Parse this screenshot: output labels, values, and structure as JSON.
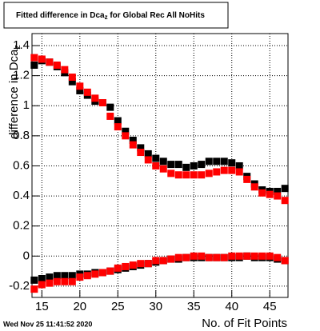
{
  "chart_data": {
    "type": "scatter",
    "title": [
      "Fitted difference in Dca",
      "z",
      " for Global Rec All NoHits"
    ],
    "x_label": "No. of Fit Points",
    "y_label": [
      "difference in Dca",
      "z"
    ],
    "timestamp": "Wed Nov 25 11:41:52 2020",
    "x": [
      14,
      15,
      16,
      17,
      18,
      19,
      20,
      21,
      22,
      23,
      24,
      25,
      26,
      27,
      28,
      29,
      30,
      31,
      32,
      33,
      34,
      35,
      36,
      37,
      38,
      39,
      40,
      41,
      42,
      43,
      44,
      45,
      46,
      47
    ],
    "series": [
      {
        "color": "#000000",
        "values": [
          1.27,
          1.3,
          1.29,
          1.26,
          1.22,
          1.16,
          1.1,
          1.07,
          1.03,
          1.02,
          0.99,
          0.9,
          0.83,
          0.77,
          0.72,
          0.68,
          0.65,
          0.63,
          0.61,
          0.61,
          0.59,
          0.6,
          0.61,
          0.63,
          0.63,
          0.63,
          0.62,
          0.6,
          0.53,
          0.48,
          0.44,
          0.43,
          0.43,
          0.45
        ]
      },
      {
        "color": "#ff0000",
        "values": [
          1.32,
          1.31,
          1.29,
          1.27,
          1.24,
          1.19,
          1.13,
          1.09,
          1.05,
          1.02,
          0.93,
          0.86,
          0.8,
          0.74,
          0.69,
          0.64,
          0.6,
          0.58,
          0.55,
          0.54,
          0.54,
          0.54,
          0.54,
          0.55,
          0.56,
          0.57,
          0.57,
          0.56,
          0.51,
          0.46,
          0.42,
          0.41,
          0.4,
          0.37
        ]
      },
      {
        "color": "#000000",
        "values": [
          -0.16,
          -0.15,
          -0.14,
          -0.13,
          -0.13,
          -0.13,
          -0.12,
          -0.12,
          -0.11,
          -0.11,
          -0.1,
          -0.09,
          -0.08,
          -0.07,
          -0.06,
          -0.05,
          -0.04,
          -0.03,
          -0.02,
          -0.02,
          -0.01,
          -0.01,
          -0.01,
          -0.01,
          -0.01,
          -0.01,
          -0.01,
          -0.01,
          0.0,
          -0.01,
          -0.01,
          -0.01,
          -0.02,
          -0.03
        ]
      },
      {
        "color": "#ff0000",
        "values": [
          -0.22,
          -0.19,
          -0.18,
          -0.17,
          -0.17,
          -0.17,
          -0.14,
          -0.13,
          -0.12,
          -0.11,
          -0.1,
          -0.08,
          -0.07,
          -0.06,
          -0.05,
          -0.05,
          -0.03,
          -0.03,
          -0.02,
          -0.01,
          -0.01,
          0.0,
          0.0,
          -0.01,
          -0.01,
          -0.01,
          0.0,
          0.0,
          0.0,
          0.0,
          0.0,
          0.0,
          -0.01,
          -0.03
        ]
      }
    ],
    "xlim": [
      13.7,
      47.4
    ],
    "ylim": [
      -0.275,
      1.48
    ],
    "xticks": [
      15,
      20,
      25,
      30,
      35,
      40,
      45
    ],
    "yticks": [
      -0.2,
      0,
      0.2,
      0.4,
      0.6,
      0.8,
      1,
      1.2,
      1.4
    ],
    "grid": true
  }
}
